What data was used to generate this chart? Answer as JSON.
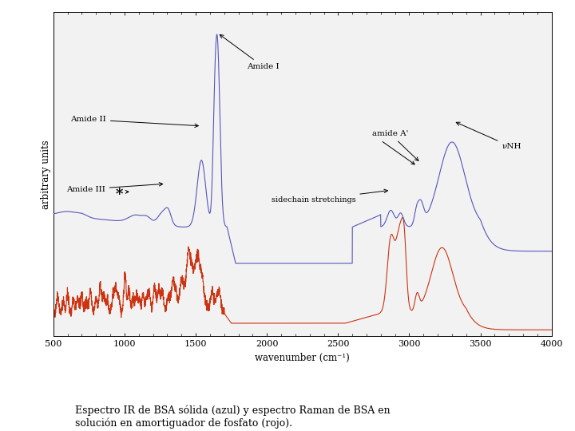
{
  "xlim": [
    500,
    4000
  ],
  "xlabel": "wavenumber (cm⁻¹)",
  "ylabel": "arbitrary units",
  "background_color": "#ffffff",
  "plot_bg": "#f0f0f0",
  "blue_color": "#5555bb",
  "red_color": "#cc3311",
  "caption": "Espectro IR de BSA sólida (azul) y espectro Raman de BSA en\nsolución en amortiguador de fosfato (rojo).",
  "xticks": [
    500,
    1000,
    1500,
    2000,
    2500,
    3000,
    3500,
    4000
  ]
}
